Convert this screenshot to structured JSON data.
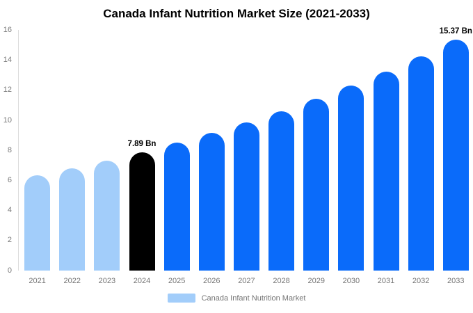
{
  "title": "Canada Infant Nutrition Market Size (2021-2033)",
  "legend": {
    "items": [
      {
        "label": "Canada Infant Nutrition Market",
        "color": "#a2cdfa"
      }
    ]
  },
  "chart_data": {
    "type": "bar",
    "title": "Canada Infant Nutrition Market Size (2021-2033)",
    "categories": [
      "2021",
      "2022",
      "2023",
      "2024",
      "2025",
      "2026",
      "2027",
      "2028",
      "2029",
      "2030",
      "2031",
      "2032",
      "2033"
    ],
    "values": [
      6.32,
      6.8,
      7.33,
      7.89,
      8.5,
      9.15,
      9.85,
      10.61,
      11.43,
      12.31,
      13.25,
      14.27,
      15.37
    ],
    "unit": "Bn",
    "bar_colors": [
      "#a2cdfa",
      "#a2cdfa",
      "#a2cdfa",
      "#000000",
      "#0a6bfa",
      "#0a6bfa",
      "#0a6bfa",
      "#0a6bfa",
      "#0a6bfa",
      "#0a6bfa",
      "#0a6bfa",
      "#0a6bfa",
      "#0a6bfa"
    ],
    "colors": {
      "historical": "#a2cdfa",
      "highlight": "#000000",
      "forecast": "#0a6bfa"
    },
    "ylim": [
      0,
      16
    ],
    "ytick_step": 2,
    "grid": false,
    "legend_position": "bottom",
    "xlabel": "",
    "ylabel": "",
    "annotations": [
      {
        "category": "2024",
        "text": "7.89 Bn"
      },
      {
        "category": "2033",
        "text": "15.37 Bn"
      }
    ],
    "axis_color": "#dcdcdc",
    "tick_color": "#7a7a7a"
  }
}
